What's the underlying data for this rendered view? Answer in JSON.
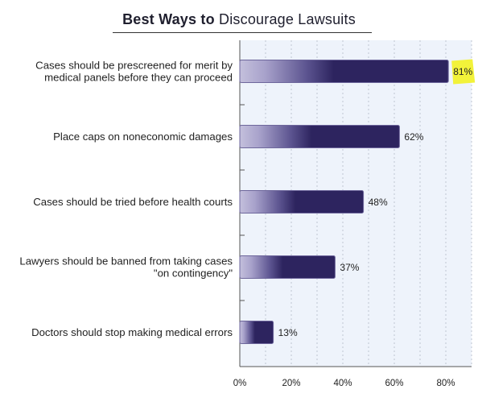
{
  "title": {
    "bold_part": "Best Ways to",
    "regular_part": "Discourage Lawsuits"
  },
  "chart_data": {
    "type": "bar",
    "orientation": "horizontal",
    "categories": [
      [
        "Cases should be prescreened for merit by",
        "medical panels before they can proceed"
      ],
      [
        "Place caps on noneconomic damages"
      ],
      [
        "Cases should be tried before health courts"
      ],
      [
        "Lawyers should be banned from taking cases",
        "\"on contingency\""
      ],
      [
        "Doctors should stop making medical errors"
      ]
    ],
    "values": [
      81,
      62,
      48,
      37,
      13
    ],
    "value_labels": [
      "81%",
      "62%",
      "48%",
      "37%",
      "13%"
    ],
    "highlighted_index": 0,
    "xlim": [
      0,
      90
    ],
    "x_ticks": [
      0,
      20,
      40,
      60,
      80
    ],
    "x_tick_labels": [
      "0%",
      "20%",
      "40%",
      "60%",
      "80%"
    ],
    "grid": true,
    "colors": {
      "bar_dark": "#2d245f",
      "bar_light": "#c4c0dc",
      "bar_stroke": "#6e679c",
      "plot_bg": "#eef3fb",
      "grid": "#bfc5d0",
      "highlight": "#f2f23a"
    }
  }
}
